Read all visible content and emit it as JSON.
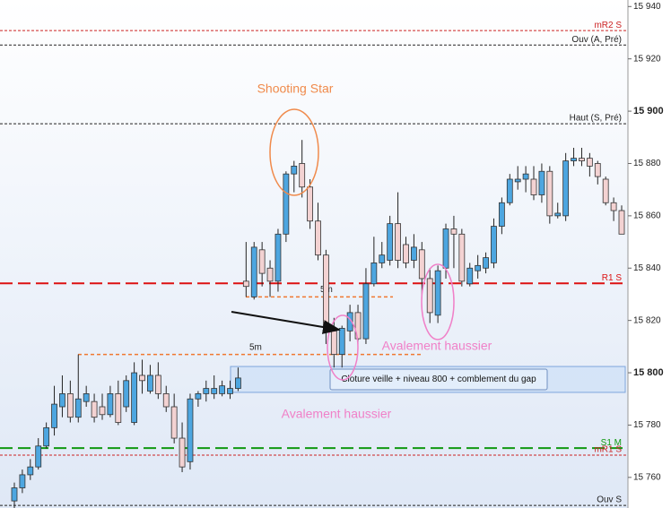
{
  "chart_data": {
    "type": "candlestick",
    "ylim": [
      15748.3,
      15942.5
    ],
    "yticks": [
      {
        "value": 15760,
        "label": "15 760"
      },
      {
        "value": 15780,
        "label": "15 780"
      },
      {
        "value": 15800,
        "label": "15 800",
        "bold": true
      },
      {
        "value": 15820,
        "label": "15 820"
      },
      {
        "value": 15840,
        "label": "15 840"
      },
      {
        "value": 15860,
        "label": "15 860"
      },
      {
        "value": 15880,
        "label": "15 880"
      },
      {
        "value": 15900,
        "label": "15 900",
        "bold": true
      },
      {
        "value": 15920,
        "label": "15 920"
      },
      {
        "value": 15940,
        "label": "15 940"
      }
    ],
    "up_color": "#4da6e0",
    "down_color": "#f3d2d2",
    "candles": [
      {
        "o": 15751,
        "h": 15758,
        "l": 15748,
        "c": 15756
      },
      {
        "o": 15756,
        "h": 15763,
        "l": 15754,
        "c": 15761
      },
      {
        "o": 15761,
        "h": 15767,
        "l": 15759,
        "c": 15764
      },
      {
        "o": 15764,
        "h": 15775,
        "l": 15763,
        "c": 15772
      },
      {
        "o": 15772,
        "h": 15781,
        "l": 15771,
        "c": 15779
      },
      {
        "o": 15779,
        "h": 15795,
        "l": 15776,
        "c": 15788
      },
      {
        "o": 15787,
        "h": 15799,
        "l": 15783,
        "c": 15792
      },
      {
        "o": 15792,
        "h": 15797,
        "l": 15781,
        "c": 15783
      },
      {
        "o": 15783,
        "h": 15807,
        "l": 15781,
        "c": 15790
      },
      {
        "o": 15789,
        "h": 15795,
        "l": 15787,
        "c": 15792
      },
      {
        "o": 15789,
        "h": 15792,
        "l": 15781,
        "c": 15783
      },
      {
        "o": 15787,
        "h": 15792,
        "l": 15782,
        "c": 15784
      },
      {
        "o": 15784,
        "h": 15795,
        "l": 15783,
        "c": 15792
      },
      {
        "o": 15792,
        "h": 15797,
        "l": 15780,
        "c": 15781
      },
      {
        "o": 15787,
        "h": 15799,
        "l": 15785,
        "c": 15797
      },
      {
        "o": 15781,
        "h": 15804,
        "l": 15780,
        "c": 15800
      },
      {
        "o": 15799,
        "h": 15805,
        "l": 15792,
        "c": 15797
      },
      {
        "o": 15793,
        "h": 15803,
        "l": 15792,
        "c": 15799
      },
      {
        "o": 15799,
        "h": 15804,
        "l": 15790,
        "c": 15792
      },
      {
        "o": 15792,
        "h": 15795,
        "l": 15785,
        "c": 15787
      },
      {
        "o": 15787,
        "h": 15792,
        "l": 15773,
        "c": 15775
      },
      {
        "o": 15775,
        "h": 15781,
        "l": 15762,
        "c": 15764
      },
      {
        "o": 15766,
        "h": 15792,
        "l": 15763,
        "c": 15790
      },
      {
        "o": 15790,
        "h": 15793,
        "l": 15787,
        "c": 15792
      },
      {
        "o": 15792,
        "h": 15797,
        "l": 15789,
        "c": 15794
      },
      {
        "o": 15792,
        "h": 15799,
        "l": 15790,
        "c": 15794
      },
      {
        "o": 15792,
        "h": 15797,
        "l": 15791,
        "c": 15795
      },
      {
        "o": 15792,
        "h": 15797,
        "l": 15790,
        "c": 15794
      },
      {
        "o": 15794,
        "h": 15802,
        "l": 15793,
        "c": 15798
      },
      {
        "o": 15835,
        "h": 15850,
        "l": 15829,
        "c": 15833
      },
      {
        "o": 15829,
        "h": 15850,
        "l": 15828,
        "c": 15848
      },
      {
        "o": 15847,
        "h": 15850,
        "l": 15833,
        "c": 15838
      },
      {
        "o": 15840,
        "h": 15843,
        "l": 15829,
        "c": 15835
      },
      {
        "o": 15835,
        "h": 15855,
        "l": 15831,
        "c": 15853
      },
      {
        "o": 15853,
        "h": 15877,
        "l": 15850,
        "c": 15876
      },
      {
        "o": 15876,
        "h": 15881,
        "l": 15869,
        "c": 15879
      },
      {
        "o": 15880,
        "h": 15889,
        "l": 15867,
        "c": 15871
      },
      {
        "o": 15871,
        "h": 15874,
        "l": 15855,
        "c": 15858
      },
      {
        "o": 15858,
        "h": 15865,
        "l": 15843,
        "c": 15845
      },
      {
        "o": 15845,
        "h": 15847,
        "l": 15811,
        "c": 15816
      },
      {
        "o": 15816,
        "h": 15821,
        "l": 15802,
        "c": 15807
      },
      {
        "o": 15807,
        "h": 15818,
        "l": 15802,
        "c": 15817
      },
      {
        "o": 15816,
        "h": 15826,
        "l": 15812,
        "c": 15823
      },
      {
        "o": 15823,
        "h": 15826,
        "l": 15811,
        "c": 15813
      },
      {
        "o": 15813,
        "h": 15840,
        "l": 15811,
        "c": 15834
      },
      {
        "o": 15834,
        "h": 15852,
        "l": 15833,
        "c": 15842
      },
      {
        "o": 15842,
        "h": 15850,
        "l": 15840,
        "c": 15845
      },
      {
        "o": 15843,
        "h": 15860,
        "l": 15841,
        "c": 15857
      },
      {
        "o": 15857,
        "h": 15869,
        "l": 15840,
        "c": 15843
      },
      {
        "o": 15849,
        "h": 15852,
        "l": 15840,
        "c": 15842
      },
      {
        "o": 15843,
        "h": 15853,
        "l": 15840,
        "c": 15848
      },
      {
        "o": 15847,
        "h": 15850,
        "l": 15829,
        "c": 15836
      },
      {
        "o": 15836,
        "h": 15840,
        "l": 15819,
        "c": 15823
      },
      {
        "o": 15822,
        "h": 15841,
        "l": 15819,
        "c": 15839
      },
      {
        "o": 15840,
        "h": 15857,
        "l": 15836,
        "c": 15855
      },
      {
        "o": 15855,
        "h": 15860,
        "l": 15840,
        "c": 15853
      },
      {
        "o": 15853,
        "h": 15855,
        "l": 15833,
        "c": 15835
      },
      {
        "o": 15834,
        "h": 15842,
        "l": 15833,
        "c": 15840
      },
      {
        "o": 15839,
        "h": 15845,
        "l": 15836,
        "c": 15841
      },
      {
        "o": 15840,
        "h": 15846,
        "l": 15838,
        "c": 15844
      },
      {
        "o": 15842,
        "h": 15859,
        "l": 15840,
        "c": 15856
      },
      {
        "o": 15856,
        "h": 15867,
        "l": 15853,
        "c": 15865
      },
      {
        "o": 15865,
        "h": 15876,
        "l": 15864,
        "c": 15874
      },
      {
        "o": 15873,
        "h": 15879,
        "l": 15870,
        "c": 15874
      },
      {
        "o": 15874,
        "h": 15879,
        "l": 15869,
        "c": 15876
      },
      {
        "o": 15874,
        "h": 15879,
        "l": 15866,
        "c": 15868
      },
      {
        "o": 15868,
        "h": 15880,
        "l": 15865,
        "c": 15877
      },
      {
        "o": 15877,
        "h": 15879,
        "l": 15857,
        "c": 15860
      },
      {
        "o": 15860,
        "h": 15865,
        "l": 15859,
        "c": 15861
      },
      {
        "o": 15860,
        "h": 15884,
        "l": 15858,
        "c": 15881
      },
      {
        "o": 15881,
        "h": 15886,
        "l": 15879,
        "c": 15882
      },
      {
        "o": 15882,
        "h": 15886,
        "l": 15879,
        "c": 15881
      },
      {
        "o": 15882,
        "h": 15884,
        "l": 15875,
        "c": 15879
      },
      {
        "o": 15880,
        "h": 15881,
        "l": 15872,
        "c": 15875
      },
      {
        "o": 15874,
        "h": 15875,
        "l": 15864,
        "c": 15865
      },
      {
        "o": 15865,
        "h": 15867,
        "l": 15858,
        "c": 15862
      },
      {
        "o": 15862,
        "h": 15864,
        "l": 15853,
        "c": 15853
      }
    ],
    "levels": [
      {
        "label": "mR2 S",
        "value": 15930.8,
        "color": "#cc2222",
        "dash": "short"
      },
      {
        "label": "Ouv (A, Pré)",
        "value": 15925.3,
        "color": "#222222",
        "dash": "short"
      },
      {
        "label": "Haut (S, Pré)",
        "value": 15895.2,
        "color": "#222222",
        "dash": "short"
      },
      {
        "label": "R1 S",
        "value": 15834.2,
        "color": "#dd1111",
        "dash": "long"
      },
      {
        "label": "S1 M",
        "value": 15771.2,
        "color": "#119911",
        "dash": "long"
      },
      {
        "label": "mR1 S",
        "value": 15768.5,
        "color": "#cc2222",
        "dash": "short"
      },
      {
        "label": "Ouv S",
        "value": 15749.3,
        "color": "#222222",
        "dash": "short"
      }
    ],
    "marker_lines": [
      {
        "label": "5m",
        "value": 15829,
        "color": "#f07830"
      },
      {
        "label": "5m",
        "value": 15807,
        "color": "#f07830"
      }
    ],
    "zone": {
      "label": "Cloture veille + niveau 800 + comblement du gap",
      "low": 15792.5,
      "high": 15802.4
    },
    "annotations": [
      "Shooting Star",
      "Avalement haussier",
      "Avalement haussier"
    ]
  }
}
